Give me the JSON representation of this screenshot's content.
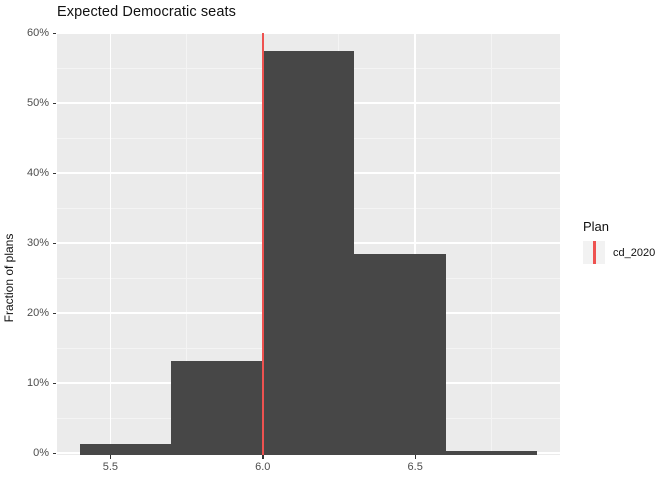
{
  "chart_data": {
    "type": "bar",
    "subtype": "histogram",
    "title": "Expected Democratic seats",
    "xlabel": "",
    "ylabel": "Fraction of plans",
    "xlim": [
      5.325,
      6.975
    ],
    "ylim": [
      0,
      60.3
    ],
    "bin_width": 0.3,
    "bins": [
      {
        "x0": 5.4,
        "x1": 5.7,
        "value_pct": 1.3
      },
      {
        "x0": 5.7,
        "x1": 6.0,
        "value_pct": 13.2
      },
      {
        "x0": 6.0,
        "x1": 6.3,
        "value_pct": 57.4
      },
      {
        "x0": 6.3,
        "x1": 6.6,
        "value_pct": 28.4
      },
      {
        "x0": 6.6,
        "x1": 6.9,
        "value_pct": 0.35
      }
    ],
    "reference_line": {
      "x": 6.0,
      "series": "cd_2020"
    },
    "x_ticks": {
      "values": [
        5.5,
        6.0,
        6.5
      ],
      "labels": [
        "5.5",
        "6.0",
        "6.5"
      ],
      "minor": [
        5.75,
        6.25,
        6.75
      ]
    },
    "y_ticks": {
      "values": [
        0,
        10,
        20,
        30,
        40,
        50,
        60
      ],
      "labels": [
        "0%",
        "10%",
        "20%",
        "30%",
        "40%",
        "50%",
        "60%"
      ],
      "minor": [
        5,
        15,
        25,
        35,
        45,
        55
      ]
    },
    "grid": true,
    "legend_position": "right"
  },
  "legend": {
    "title": "Plan",
    "items": [
      {
        "label": "cd_2020"
      }
    ]
  },
  "colors": {
    "bar_fill": "#474747",
    "panel_bg": "#EBEBEB",
    "grid_major": "#FFFFFF",
    "grid_minor": "#F4F4F4",
    "ref_line": "#EE5250",
    "tick_label": "#4D4D4D",
    "text": "#111111",
    "axis_tick": "#333333",
    "legend_key_bg": "#F2F2F2"
  }
}
